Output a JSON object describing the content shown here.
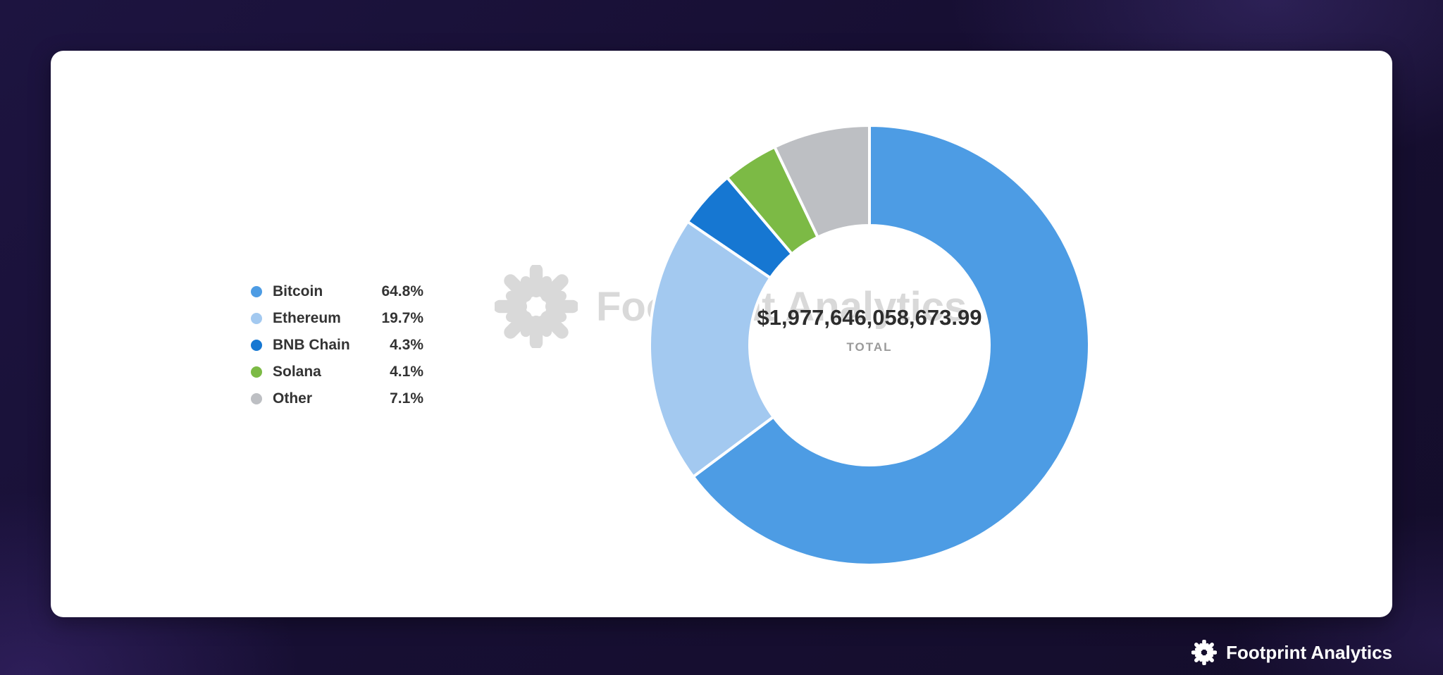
{
  "chart_data": {
    "type": "pie",
    "subtype": "donut",
    "title": "",
    "legend_position": "left",
    "series": [
      {
        "name": "Bitcoin",
        "value": 64.8,
        "label": "64.8%",
        "color": "#4D9CE4"
      },
      {
        "name": "Ethereum",
        "value": 19.7,
        "label": "19.7%",
        "color": "#A3C9F0"
      },
      {
        "name": "BNB Chain",
        "value": 4.3,
        "label": "4.3%",
        "color": "#1677D2"
      },
      {
        "name": "Solana",
        "value": 4.1,
        "label": "4.1%",
        "color": "#7CBA45"
      },
      {
        "name": "Other",
        "value": 7.1,
        "label": "7.1%",
        "color": "#BDBFC3"
      }
    ],
    "center": {
      "total_value": "$1,977,646,058,673.99",
      "total_label": "TOTAL"
    }
  },
  "watermark": {
    "text": "Footprint Analytics"
  },
  "footer_brand": {
    "text": "Footprint Analytics"
  },
  "colors": {
    "card_background": "#ffffff",
    "page_background": "#170f33",
    "legend_text": "#333333",
    "total_text": "#2d2d2d",
    "total_sub_text": "#9a9a9a"
  }
}
